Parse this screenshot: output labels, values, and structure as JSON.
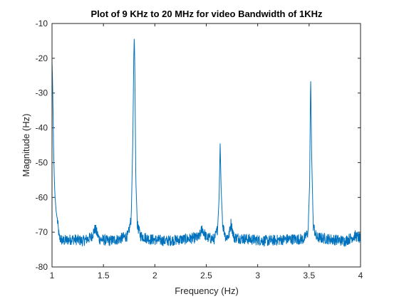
{
  "chart_data": {
    "type": "line",
    "title": "Plot of 9 KHz to 20 MHz for video Bandwidth of 1KHz",
    "xlabel": "Frequency (Hz)",
    "ylabel": "Magnitude (Hz)",
    "xlim": [
      1,
      4
    ],
    "ylim": [
      -80,
      -10
    ],
    "x_ticks": [
      1,
      1.5,
      2,
      2.5,
      3,
      3.5,
      4
    ],
    "x_tick_labels": [
      "1",
      "1.5",
      "2",
      "2.5",
      "3",
      "3.5",
      "4"
    ],
    "y_ticks": [
      -80,
      -70,
      -60,
      -50,
      -40,
      -30,
      -20,
      -10
    ],
    "y_tick_labels": [
      "-80",
      "-70",
      "-60",
      "-50",
      "-40",
      "-30",
      "-20",
      "-10"
    ],
    "grid": false,
    "line_color": "#0072BD",
    "series": [
      {
        "x": [
          1.0,
          1.005,
          1.01,
          1.015,
          1.02,
          1.025,
          1.03,
          1.04,
          1.05,
          1.07,
          1.1,
          1.2,
          1.3,
          1.38,
          1.42,
          1.46,
          1.55,
          1.65,
          1.74,
          1.77,
          1.785,
          1.795,
          1.8,
          1.805,
          1.815,
          1.83,
          1.86,
          1.95,
          2.1,
          2.3,
          2.43,
          2.46,
          2.5,
          2.58,
          2.61,
          2.625,
          2.635,
          2.645,
          2.66,
          2.69,
          2.72,
          2.74,
          2.77,
          2.9,
          3.1,
          3.3,
          3.45,
          3.49,
          3.505,
          3.515,
          3.525,
          3.54,
          3.57,
          3.7,
          3.85,
          3.95,
          4.0
        ],
        "y": [
          -21,
          -26,
          -35,
          -45,
          -52,
          -57,
          -60,
          -64,
          -66,
          -71.5,
          -72.5,
          -72,
          -72.5,
          -71.5,
          -69,
          -72,
          -72.5,
          -72,
          -71,
          -66,
          -45,
          -20,
          -13.5,
          -22,
          -55,
          -68,
          -71,
          -72,
          -72.5,
          -72,
          -71.5,
          -69,
          -71.5,
          -72,
          -69,
          -60,
          -44.5,
          -58,
          -68,
          -71.5,
          -71,
          -67.5,
          -71.5,
          -72,
          -72.5,
          -72,
          -72,
          -70,
          -56,
          -25,
          -48,
          -68,
          -71.5,
          -72,
          -72.5,
          -71,
          -72
        ]
      }
    ]
  }
}
